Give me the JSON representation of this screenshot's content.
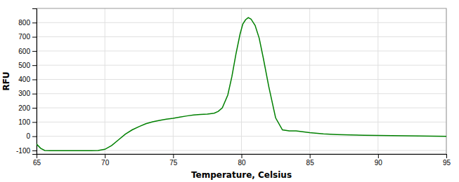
{
  "chart_data": {
    "type": "line",
    "xlabel": "Temperature, Celsius",
    "ylabel": "RFU",
    "x": [
      65.0,
      65.3,
      65.6,
      66.0,
      66.5,
      67.0,
      67.5,
      68.0,
      68.5,
      69.0,
      69.5,
      70.0,
      70.5,
      71.0,
      71.5,
      72.0,
      72.5,
      73.0,
      73.5,
      74.0,
      74.5,
      75.0,
      75.5,
      76.0,
      76.5,
      77.0,
      77.5,
      78.0,
      78.3,
      78.6,
      79.0,
      79.3,
      79.6,
      79.9,
      80.1,
      80.3,
      80.5,
      80.7,
      81.0,
      81.3,
      81.6,
      82.0,
      82.5,
      83.0,
      83.5,
      84.0,
      84.5,
      85.0,
      86.0,
      87.0,
      88.0,
      89.0,
      90.0,
      91.0,
      92.0,
      93.0,
      94.0,
      95.0
    ],
    "values": [
      -55,
      -85,
      -100,
      -102,
      -102,
      -102,
      -102,
      -102,
      -102,
      -102,
      -100,
      -92,
      -65,
      -25,
      15,
      45,
      68,
      88,
      102,
      112,
      120,
      126,
      135,
      143,
      150,
      153,
      156,
      162,
      175,
      200,
      290,
      420,
      580,
      720,
      790,
      820,
      835,
      825,
      780,
      690,
      550,
      350,
      130,
      45,
      38,
      38,
      32,
      25,
      17,
      12,
      9,
      7,
      5,
      4,
      3,
      2,
      1,
      0
    ],
    "color": "#008000",
    "xlim": [
      65,
      95
    ],
    "ylim": [
      -125,
      900
    ],
    "xticks": [
      65,
      70,
      75,
      80,
      85,
      90,
      95
    ],
    "yticks": [
      -100,
      0,
      100,
      200,
      300,
      400,
      500,
      600,
      700,
      800
    ],
    "grid": true
  }
}
